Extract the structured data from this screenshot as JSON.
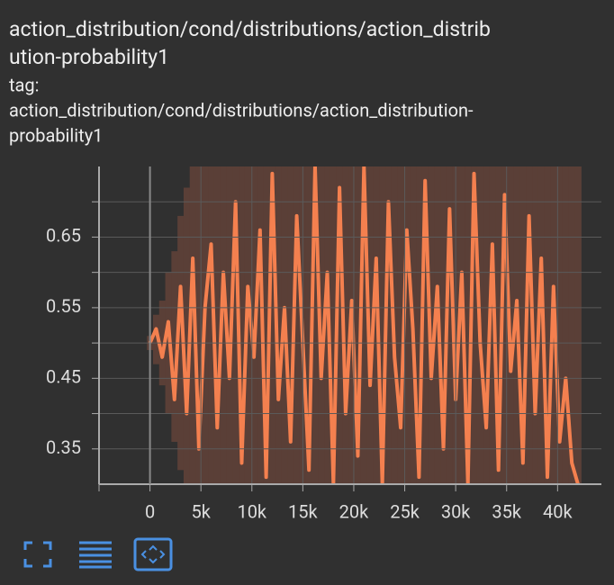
{
  "header": {
    "title_lines": [
      "action_distribution/cond/distributions/action_distrib",
      "ution-probability1"
    ],
    "tag_label": "tag:",
    "tag_lines": [
      "action_distribution/cond/distributions/action_distribution-",
      "probability1"
    ]
  },
  "chart_data": {
    "type": "line",
    "x": [
      0,
      600,
      1200,
      1800,
      2400,
      3000,
      3600,
      4200,
      4800,
      5400,
      6000,
      6600,
      7200,
      7800,
      8400,
      9000,
      9600,
      10200,
      10800,
      11400,
      12000,
      12600,
      13200,
      13800,
      14400,
      15000,
      15600,
      16200,
      16800,
      17400,
      18000,
      18600,
      19200,
      19800,
      20400,
      21000,
      21600,
      22200,
      22800,
      23400,
      24000,
      24600,
      25200,
      25800,
      26400,
      27000,
      27600,
      28200,
      28800,
      29400,
      30000,
      30600,
      31200,
      31800,
      32400,
      33000,
      33600,
      34200,
      34800,
      35400,
      36000,
      36600,
      37200,
      37800,
      38400,
      39000,
      39600,
      40200,
      40800,
      41400,
      42000
    ],
    "series": [
      {
        "color": "#f4804f",
        "values": [
          0.5,
          0.52,
          0.48,
          0.53,
          0.42,
          0.58,
          0.4,
          0.62,
          0.35,
          0.55,
          0.64,
          0.38,
          0.6,
          0.45,
          0.7,
          0.33,
          0.58,
          0.48,
          0.66,
          0.31,
          0.74,
          0.42,
          0.55,
          0.36,
          0.68,
          0.5,
          0.32,
          0.75,
          0.45,
          0.6,
          0.3,
          0.72,
          0.4,
          0.56,
          0.34,
          0.75,
          0.44,
          0.62,
          0.3,
          0.7,
          0.48,
          0.38,
          0.66,
          0.52,
          0.31,
          0.73,
          0.45,
          0.58,
          0.35,
          0.69,
          0.42,
          0.6,
          0.3,
          0.74,
          0.5,
          0.38,
          0.64,
          0.32,
          0.71,
          0.46,
          0.56,
          0.33,
          0.68,
          0.4,
          0.62,
          0.31,
          0.58,
          0.36,
          0.45,
          0.33,
          0.3
        ]
      }
    ],
    "band": {
      "color": "#5a3f37",
      "upper": [
        0.51,
        0.54,
        0.56,
        0.6,
        0.63,
        0.68,
        0.72,
        0.75,
        0.75,
        0.75,
        0.75,
        0.75,
        0.75,
        0.75,
        0.75,
        0.75,
        0.75,
        0.75,
        0.75,
        0.75,
        0.75,
        0.75,
        0.75,
        0.75,
        0.75,
        0.75,
        0.75,
        0.75,
        0.75,
        0.75,
        0.75,
        0.75,
        0.75,
        0.75,
        0.75,
        0.75,
        0.75,
        0.75,
        0.75,
        0.75,
        0.75,
        0.75,
        0.75,
        0.75,
        0.75,
        0.75,
        0.75,
        0.75,
        0.75,
        0.75,
        0.75,
        0.75,
        0.75,
        0.75,
        0.75,
        0.75,
        0.75,
        0.75,
        0.75,
        0.75,
        0.75,
        0.75,
        0.75,
        0.75,
        0.75,
        0.75,
        0.75,
        0.75,
        0.75,
        0.75,
        0.75
      ],
      "lower": [
        0.49,
        0.47,
        0.44,
        0.4,
        0.36,
        0.32,
        0.3,
        0.3,
        0.3,
        0.3,
        0.3,
        0.3,
        0.3,
        0.3,
        0.3,
        0.3,
        0.3,
        0.3,
        0.3,
        0.3,
        0.3,
        0.3,
        0.3,
        0.3,
        0.3,
        0.3,
        0.3,
        0.3,
        0.3,
        0.3,
        0.3,
        0.3,
        0.3,
        0.3,
        0.3,
        0.3,
        0.3,
        0.3,
        0.3,
        0.3,
        0.3,
        0.3,
        0.3,
        0.3,
        0.3,
        0.3,
        0.3,
        0.3,
        0.3,
        0.3,
        0.3,
        0.3,
        0.3,
        0.3,
        0.3,
        0.3,
        0.3,
        0.3,
        0.3,
        0.3,
        0.3,
        0.3,
        0.3,
        0.3,
        0.3,
        0.3,
        0.3,
        0.3,
        0.3,
        0.3,
        0.3
      ]
    },
    "xlim": [
      -5000,
      44300
    ],
    "ylim": [
      0.3,
      0.75
    ],
    "xticks": [
      {
        "value": 0,
        "label": "0"
      },
      {
        "value": 5000,
        "label": "5k"
      },
      {
        "value": 10000,
        "label": "10k"
      },
      {
        "value": 15000,
        "label": "15k"
      },
      {
        "value": 20000,
        "label": "20k"
      },
      {
        "value": 25000,
        "label": "25k"
      },
      {
        "value": 30000,
        "label": "30k"
      },
      {
        "value": 35000,
        "label": "35k"
      },
      {
        "value": 40000,
        "label": "40k"
      }
    ],
    "xticks_minor": [
      -5000
    ],
    "yticks": [
      0.35,
      0.45,
      0.55,
      0.65
    ],
    "yticks_minor": [
      0.4,
      0.5,
      0.6,
      0.7
    ],
    "grid": true
  }
}
